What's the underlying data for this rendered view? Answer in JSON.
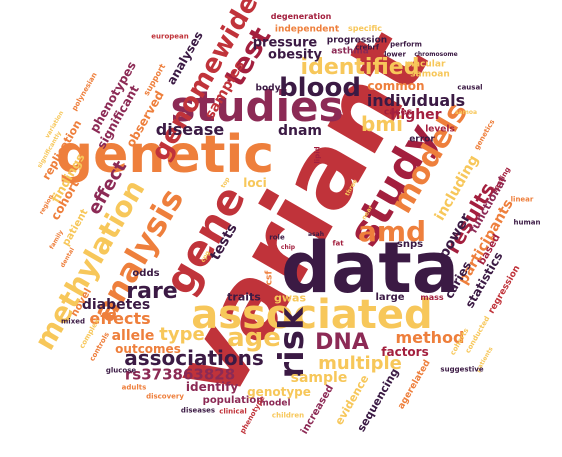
{
  "palette": {
    "dark_purple": "#3b1a44",
    "crimson": "#c0333a",
    "orange": "#ee7f3c",
    "yellow": "#f7c75a",
    "plum": "#8c2a55",
    "dark_red": "#a31f3e"
  },
  "words": [
    {
      "text": "variant",
      "weight": 1.0,
      "color": "crimson"
    },
    {
      "text": "data",
      "weight": 0.92,
      "color": "dark_purple"
    },
    {
      "text": "genetic",
      "weight": 0.78,
      "color": "orange"
    },
    {
      "text": "studies",
      "weight": 0.62,
      "color": "plum"
    },
    {
      "text": "study",
      "weight": 0.62,
      "color": "dark_red"
    },
    {
      "text": "associated",
      "weight": 0.6,
      "color": "yellow"
    },
    {
      "text": "gene",
      "weight": 0.6,
      "color": "crimson"
    },
    {
      "text": "analysis",
      "weight": 0.5,
      "color": "orange"
    },
    {
      "text": "methylation",
      "weight": 0.48,
      "color": "yellow"
    },
    {
      "text": "models",
      "weight": 0.44,
      "color": "orange"
    },
    {
      "text": "genomewide",
      "weight": 0.38,
      "color": "crimson"
    },
    {
      "text": "risk",
      "weight": 0.42,
      "color": "dark_purple"
    },
    {
      "text": "test",
      "weight": 0.4,
      "color": "dark_red"
    },
    {
      "text": "blood",
      "weight": 0.38,
      "color": "dark_purple"
    },
    {
      "text": "amd",
      "weight": 0.36,
      "color": "orange"
    },
    {
      "text": "age",
      "weight": 0.34,
      "color": "yellow"
    },
    {
      "text": "identified",
      "weight": 0.3,
      "color": "yellow"
    },
    {
      "text": "rare",
      "weight": 0.28,
      "color": "dark_purple"
    },
    {
      "text": "associations",
      "weight": 0.26,
      "color": "dark_purple"
    },
    {
      "text": "DNA",
      "weight": 0.28,
      "color": "plum"
    },
    {
      "text": "results",
      "weight": 0.26,
      "color": "dark_red"
    },
    {
      "text": "bmi",
      "weight": 0.24,
      "color": "yellow"
    },
    {
      "text": "effect",
      "weight": 0.22,
      "color": "plum"
    },
    {
      "text": "disease",
      "weight": 0.22,
      "color": "dark_purple"
    },
    {
      "text": "type",
      "weight": 0.22,
      "color": "yellow"
    },
    {
      "text": "samples",
      "weight": 0.2,
      "color": "crimson"
    },
    {
      "text": "multiple",
      "weight": 0.2,
      "color": "yellow"
    },
    {
      "text": "individuals",
      "weight": 0.18,
      "color": "dark_purple"
    },
    {
      "text": "participants",
      "weight": 0.18,
      "color": "orange"
    },
    {
      "text": "including",
      "weight": 0.18,
      "color": "yellow"
    },
    {
      "text": "tests",
      "weight": 0.18,
      "color": "dark_purple"
    },
    {
      "text": "method",
      "weight": 0.17,
      "color": "orange"
    },
    {
      "text": "effects",
      "weight": 0.17,
      "color": "orange"
    },
    {
      "text": "rs373863828",
      "weight": 0.17,
      "color": "plum"
    },
    {
      "text": "pressure",
      "weight": 0.16,
      "color": "dark_purple"
    },
    {
      "text": "obesity",
      "weight": 0.16,
      "color": "dark_purple"
    },
    {
      "text": "dnam",
      "weight": 0.16,
      "color": "dark_purple"
    },
    {
      "text": "higher",
      "weight": 0.16,
      "color": "dark_red"
    },
    {
      "text": "power",
      "weight": 0.16,
      "color": "dark_purple"
    },
    {
      "text": "allele",
      "weight": 0.15,
      "color": "orange"
    },
    {
      "text": "diabetes",
      "weight": 0.15,
      "color": "dark_purple"
    },
    {
      "text": "sample",
      "weight": 0.15,
      "color": "yellow"
    },
    {
      "text": "analyses",
      "weight": 0.14,
      "color": "dark_purple"
    },
    {
      "text": "phenotypes",
      "weight": 0.14,
      "color": "plum"
    },
    {
      "text": "significant",
      "weight": 0.14,
      "color": "plum"
    },
    {
      "text": "observed",
      "weight": 0.14,
      "color": "orange"
    },
    {
      "text": "common",
      "weight": 0.14,
      "color": "orange"
    },
    {
      "text": "cohort",
      "weight": 0.14,
      "color": "orange"
    },
    {
      "text": "findings",
      "weight": 0.13,
      "color": "yellow"
    },
    {
      "text": "outcomes",
      "weight": 0.13,
      "color": "orange"
    },
    {
      "text": "identify",
      "weight": 0.13,
      "color": "plum"
    },
    {
      "text": "genotype",
      "weight": 0.13,
      "color": "yellow"
    },
    {
      "text": "factors",
      "weight": 0.12,
      "color": "dark_red"
    },
    {
      "text": "caries",
      "weight": 0.13,
      "color": "dark_purple"
    },
    {
      "text": "statistics",
      "weight": 0.12,
      "color": "dark_purple"
    },
    {
      "text": "functional",
      "weight": 0.12,
      "color": "plum"
    },
    {
      "text": "sequencing",
      "weight": 0.12,
      "color": "dark_purple"
    },
    {
      "text": "evidence",
      "weight": 0.12,
      "color": "yellow"
    },
    {
      "text": "loci",
      "weight": 0.12,
      "color": "yellow"
    },
    {
      "text": "traits",
      "weight": 0.12,
      "color": "dark_purple"
    },
    {
      "text": "gwas",
      "weight": 0.12,
      "color": "yellow"
    },
    {
      "text": "increased",
      "weight": 0.11,
      "color": "plum"
    },
    {
      "text": "population",
      "weight": 0.11,
      "color": "plum"
    },
    {
      "text": "based",
      "weight": 0.11,
      "color": "dark_red"
    },
    {
      "text": "regression",
      "weight": 0.1,
      "color": "crimson"
    },
    {
      "text": "replication",
      "weight": 0.11,
      "color": "orange"
    },
    {
      "text": "odds",
      "weight": 0.1,
      "color": "dark_purple"
    },
    {
      "text": "novel",
      "weight": 0.1,
      "color": "orange"
    },
    {
      "text": "patient",
      "weight": 0.1,
      "color": "yellow"
    },
    {
      "text": "large",
      "weight": 0.1,
      "color": "dark_purple"
    },
    {
      "text": "snps",
      "weight": 0.09,
      "color": "dark_purple"
    },
    {
      "text": "model",
      "weight": 0.09,
      "color": "plum"
    },
    {
      "text": "progression",
      "weight": 0.09,
      "color": "dark_purple"
    },
    {
      "text": "independent",
      "weight": 0.09,
      "color": "orange"
    },
    {
      "text": "samoan",
      "weight": 0.08,
      "color": "yellow"
    },
    {
      "text": "macular",
      "weight": 0.08,
      "color": "yellow"
    },
    {
      "text": "levels",
      "weight": 0.08,
      "color": "dark_red"
    },
    {
      "text": "cases",
      "weight": 0.08,
      "color": "dark_red"
    },
    {
      "text": "error",
      "weight": 0.08,
      "color": "dark_purple"
    },
    {
      "text": "asthma",
      "weight": 0.08,
      "color": "plum"
    },
    {
      "text": "agerelated",
      "weight": 0.08,
      "color": "orange"
    },
    {
      "text": "body",
      "weight": 0.08,
      "color": "dark_purple"
    },
    {
      "text": "mass",
      "weight": 0.07,
      "color": "dark_red"
    },
    {
      "text": "csf",
      "weight": 0.08,
      "color": "orange"
    },
    {
      "text": "support",
      "weight": 0.07,
      "color": "orange"
    },
    {
      "text": "degeneration",
      "weight": 0.06,
      "color": "dark_red"
    },
    {
      "text": "specific",
      "weight": 0.06,
      "color": "yellow"
    },
    {
      "text": "european",
      "weight": 0.05,
      "color": "crimson"
    },
    {
      "text": "polynesian",
      "weight": 0.05,
      "color": "orange"
    },
    {
      "text": "variation",
      "weight": 0.05,
      "color": "yellow"
    },
    {
      "text": "significantly",
      "weight": 0.05,
      "color": "yellow"
    },
    {
      "text": "region",
      "weight": 0.05,
      "color": "orange"
    },
    {
      "text": "family",
      "weight": 0.05,
      "color": "orange"
    },
    {
      "text": "dental",
      "weight": 0.05,
      "color": "orange"
    },
    {
      "text": "mixed",
      "weight": 0.05,
      "color": "dark_purple"
    },
    {
      "text": "complex",
      "weight": 0.05,
      "color": "yellow"
    },
    {
      "text": "controls",
      "weight": 0.05,
      "color": "orange"
    },
    {
      "text": "glucose",
      "weight": 0.05,
      "color": "dark_purple"
    },
    {
      "text": "adults",
      "weight": 0.05,
      "color": "orange"
    },
    {
      "text": "discovery",
      "weight": 0.05,
      "color": "orange"
    },
    {
      "text": "diseases",
      "weight": 0.05,
      "color": "dark_purple"
    },
    {
      "text": "clinical",
      "weight": 0.05,
      "color": "crimson"
    },
    {
      "text": "phenotype",
      "weight": 0.05,
      "color": "crimson"
    },
    {
      "text": "children",
      "weight": 0.05,
      "color": "yellow"
    },
    {
      "text": "perform",
      "weight": 0.05,
      "color": "dark_purple"
    },
    {
      "text": "crebrf",
      "weight": 0.05,
      "color": "dark_purple"
    },
    {
      "text": "lower",
      "weight": 0.05,
      "color": "dark_purple"
    },
    {
      "text": "chromosome",
      "weight": 0.04,
      "color": "dark_purple"
    },
    {
      "text": "causal",
      "weight": 0.05,
      "color": "dark_purple"
    },
    {
      "text": "samoa",
      "weight": 0.05,
      "color": "yellow"
    },
    {
      "text": "genetics",
      "weight": 0.05,
      "color": "orange"
    },
    {
      "text": "fasting",
      "weight": 0.05,
      "color": "dark_red"
    },
    {
      "text": "linear",
      "weight": 0.05,
      "color": "orange"
    },
    {
      "text": "human",
      "weight": 0.05,
      "color": "dark_purple"
    },
    {
      "text": "cohorts",
      "weight": 0.05,
      "color": "yellow"
    },
    {
      "text": "conducted",
      "weight": 0.05,
      "color": "yellow"
    },
    {
      "text": "patients",
      "weight": 0.05,
      "color": "yellow"
    },
    {
      "text": "suggestive",
      "weight": 0.05,
      "color": "dark_purple"
    },
    {
      "text": "lipid",
      "weight": 0.05,
      "color": "dark_red"
    },
    {
      "text": "role",
      "weight": 0.05,
      "color": "dark_purple"
    },
    {
      "text": "chip",
      "weight": 0.04,
      "color": "dark_red"
    },
    {
      "text": "asah",
      "weight": 0.04,
      "color": "dark_purple"
    },
    {
      "text": "fat",
      "weight": 0.05,
      "color": "dark_red"
    },
    {
      "text": "top",
      "weight": 0.04,
      "color": "yellow"
    },
    {
      "text": "near",
      "weight": 0.04,
      "color": "yellow"
    },
    {
      "text": "three",
      "weight": 0.04,
      "color": "yellow"
    },
    {
      "text": "cpg",
      "weight": 0.04,
      "color": "yellow"
    }
  ]
}
